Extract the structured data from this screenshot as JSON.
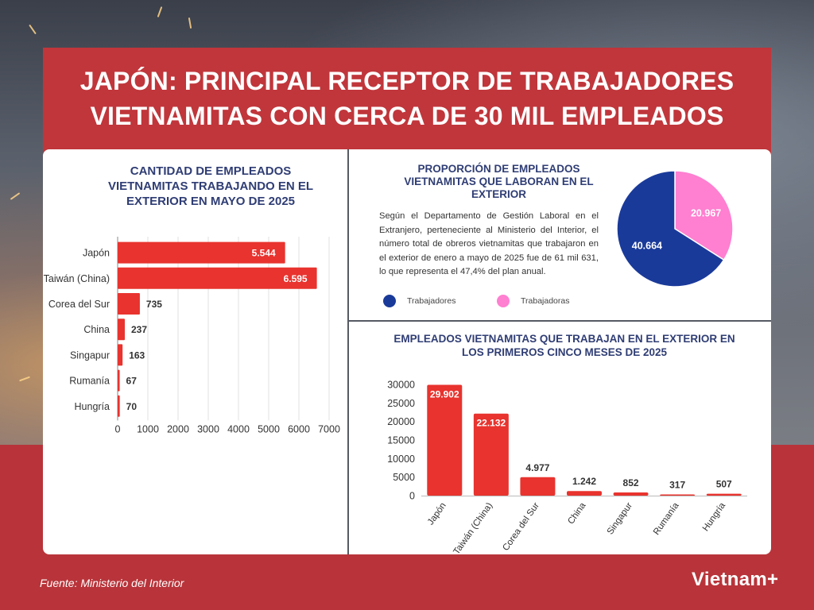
{
  "title": "JAPÓN: PRINCIPAL RECEPTOR DE TRABAJADORES VIETNAMITAS CON CERCA DE 30 MIL EMPLEADOS",
  "source": "Fuente: Ministerio del Interior",
  "logo": "Vietnam+",
  "colors": {
    "red": "#e8332e",
    "navy": "#1a3a9a",
    "pink": "#ff7fd0",
    "banner": "#c0363b",
    "title_blue": "#2f3d74"
  },
  "description": "Según el Departamento de Gestión Laboral en el Extranjero, perteneciente al Ministerio del Interior, el número total de obreros vietnamitas que trabajaron en el exterior de enero a mayo de 2025 fue de 61 mil 631, lo que representa el 47,4% del plan anual.",
  "chart_data": [
    {
      "type": "bar",
      "orientation": "horizontal",
      "title": "CANTIDAD DE EMPLEADOS VIETNAMITAS TRABAJANDO EN EL EXTERIOR EN MAYO DE 2025",
      "categories": [
        "Japón",
        "Taiwán (China)",
        "Corea del Sur",
        "China",
        "Singapur",
        "Rumanía",
        "Hungría"
      ],
      "values": [
        5544,
        6595,
        735,
        237,
        163,
        67,
        70
      ],
      "labels": [
        "5.544",
        "6.595",
        "735",
        "237",
        "163",
        "67",
        "70"
      ],
      "xlim": [
        0,
        7000
      ],
      "ticks": [
        "0",
        "1000",
        "2000",
        "3000",
        "4000",
        "5000",
        "6000",
        "7000"
      ],
      "grid": true
    },
    {
      "type": "pie",
      "title": "PROPORCIÓN DE EMPLEADOS VIETNAMITAS QUE LABORAN EN EL EXTERIOR",
      "slices": [
        {
          "name": "Trabajadores",
          "value": 40664,
          "label": "40.664",
          "color": "#1a3a9a"
        },
        {
          "name": "Trabajadoras",
          "value": 20967,
          "label": "20.967",
          "color": "#ff7fd0"
        }
      ],
      "legend": "bottom"
    },
    {
      "type": "bar",
      "orientation": "vertical",
      "title": "EMPLEADOS VIETNAMITAS QUE TRABAJAN EN EL EXTERIOR EN LOS PRIMEROS CINCO MESES DE 2025",
      "categories": [
        "Japón",
        "Taiwán (China)",
        "Corea del Sur",
        "China",
        "Singapur",
        "Rumanía",
        "Hungría"
      ],
      "values": [
        29902,
        22132,
        4977,
        1242,
        852,
        317,
        507
      ],
      "labels": [
        "29.902",
        "22.132",
        "4.977",
        "1.242",
        "852",
        "317",
        "507"
      ],
      "ylim": [
        0,
        30000
      ],
      "ticks": [
        "0",
        "5000",
        "10000",
        "15000",
        "20000",
        "25000",
        "30000"
      ],
      "grid": false
    }
  ]
}
